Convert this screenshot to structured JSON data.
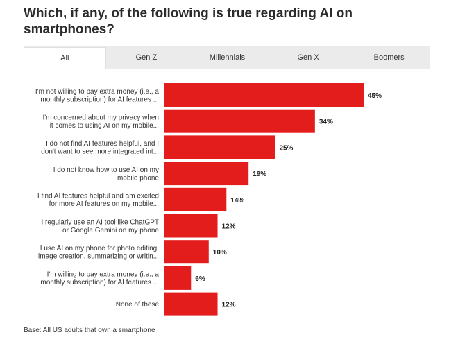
{
  "title": "Which, if any, of the following is true regarding AI on smartphones?",
  "tabs": [
    {
      "label": "All",
      "active": true
    },
    {
      "label": "Gen Z",
      "active": false
    },
    {
      "label": "Millennials",
      "active": false
    },
    {
      "label": "Gen X",
      "active": false
    },
    {
      "label": "Boomers",
      "active": false
    }
  ],
  "footnote": "Base: All US adults that own a smartphone",
  "colors": {
    "bar": "#e31c1c"
  },
  "chart_data": {
    "type": "bar",
    "orientation": "horizontal",
    "categories": [
      [
        "I'm not willing to pay extra money (i.e., a",
        "monthly subscription) for AI features ..."
      ],
      [
        "I'm concerned about my privacy when",
        "it comes to using AI on my mobile..."
      ],
      [
        "I do not find AI features helpful, and I",
        "don't want to see more integrated int..."
      ],
      [
        "I do not know how to use AI on my",
        "mobile phone"
      ],
      [
        "I find AI features helpful and am excited",
        "for more AI features on my mobile..."
      ],
      [
        "I regularly use an AI tool like ChatGPT",
        "or Google Gemini on my phone"
      ],
      [
        "I use AI on my phone for photo editing,",
        "image creation, summarizing or writin..."
      ],
      [
        "I'm willing to pay extra money (i.e., a",
        "monthly subscription) for AI features ..."
      ],
      [
        "None of these"
      ]
    ],
    "values": [
      45,
      34,
      25,
      19,
      14,
      12,
      10,
      6,
      12
    ],
    "value_labels": [
      "45%",
      "34%",
      "25%",
      "19%",
      "14%",
      "12%",
      "10%",
      "6%",
      "12%"
    ],
    "xlim": [
      0,
      45
    ],
    "grid": false
  }
}
